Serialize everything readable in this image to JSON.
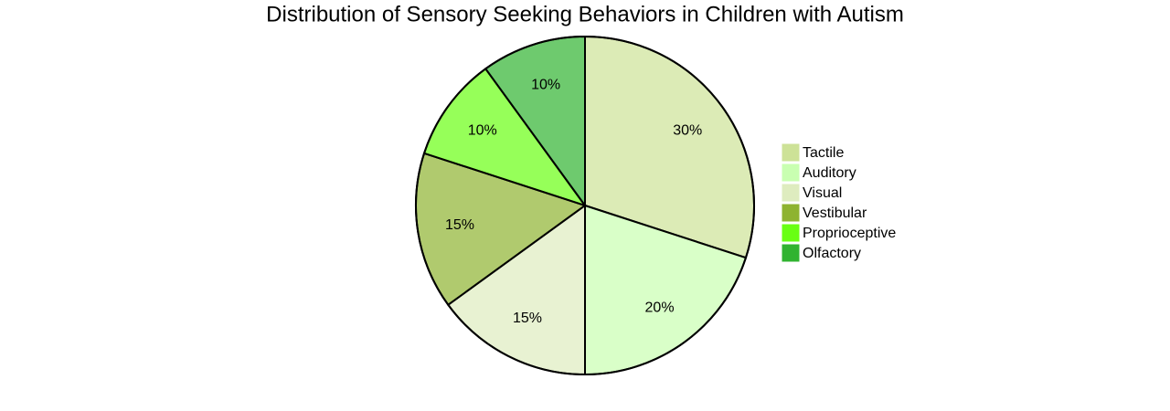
{
  "chart_data": {
    "type": "pie",
    "title": "Distribution of Sensory Seeking Behaviors in Children with Autism",
    "categories": [
      "Tactile",
      "Auditory",
      "Visual",
      "Vestibular",
      "Proprioceptive",
      "Olfactory"
    ],
    "values": [
      30,
      20,
      15,
      15,
      10,
      10
    ],
    "value_labels": [
      "30%",
      "20%",
      "15%",
      "15%",
      "10%",
      "10%"
    ],
    "colors": [
      "#cde297",
      "#c9ffb1",
      "#deecbf",
      "#8eb330",
      "#69ff13",
      "#30b330"
    ],
    "legend": "right"
  }
}
